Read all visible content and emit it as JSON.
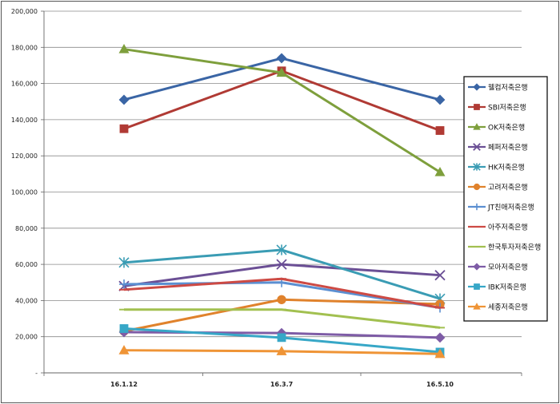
{
  "chart_data": {
    "type": "line",
    "title": "",
    "xlabel": "",
    "ylabel": "",
    "categories": [
      "16.1.12",
      "16.3.7",
      "16.5.10"
    ],
    "ylim": [
      0,
      200000
    ],
    "y_ticks": [
      {
        "value": 0,
        "label": "-"
      },
      {
        "value": 20000,
        "label": "20,000"
      },
      {
        "value": 40000,
        "label": "40,000"
      },
      {
        "value": 60000,
        "label": "60,000"
      },
      {
        "value": 80000,
        "label": "80,000"
      },
      {
        "value": 100000,
        "label": "100,000"
      },
      {
        "value": 120000,
        "label": "120,000"
      },
      {
        "value": 140000,
        "label": "140,000"
      },
      {
        "value": 160000,
        "label": "160,000"
      },
      {
        "value": 180000,
        "label": "180,000"
      },
      {
        "value": 200000,
        "label": "200,000"
      }
    ],
    "grid": true,
    "legend_position": "right",
    "series": [
      {
        "name": "웰컴저축은행",
        "values": [
          151000,
          174000,
          151000
        ],
        "color": "#3a65a5",
        "marker": "diamond"
      },
      {
        "name": "SBI저축은행",
        "values": [
          135000,
          167000,
          134000
        ],
        "color": "#b03a34",
        "marker": "square"
      },
      {
        "name": "OK저축은행",
        "values": [
          179000,
          166000,
          111000
        ],
        "color": "#7e9f3c",
        "marker": "triangle"
      },
      {
        "name": "페퍼저축은행",
        "values": [
          48000,
          60000,
          54000
        ],
        "color": "#6b4f95",
        "marker": "x"
      },
      {
        "name": "HK저축은행",
        "values": [
          61000,
          68000,
          41000
        ],
        "color": "#3a9cb4",
        "marker": "star"
      },
      {
        "name": "고려저축은행",
        "values": [
          23000,
          40500,
          38000
        ],
        "color": "#e0822c",
        "marker": "circle"
      },
      {
        "name": "JT친애저축은행",
        "values": [
          49000,
          50000,
          36000
        ],
        "color": "#5b8fd1",
        "marker": "plus"
      },
      {
        "name": "아주저축은행",
        "values": [
          46000,
          52000,
          36000
        ],
        "color": "#cd4a44",
        "marker": "dash"
      },
      {
        "name": "한국투자저축은행",
        "values": [
          35000,
          35000,
          25000
        ],
        "color": "#a2c050",
        "marker": "dash"
      },
      {
        "name": "모아저축은행",
        "values": [
          22500,
          22000,
          19500
        ],
        "color": "#7e5ca6",
        "marker": "diamond"
      },
      {
        "name": "IBK저축은행",
        "values": [
          24500,
          19500,
          11500
        ],
        "color": "#37a7c7",
        "marker": "square"
      },
      {
        "name": "세종저축은행",
        "values": [
          12500,
          12000,
          10500
        ],
        "color": "#ef9436",
        "marker": "triangle"
      }
    ]
  }
}
